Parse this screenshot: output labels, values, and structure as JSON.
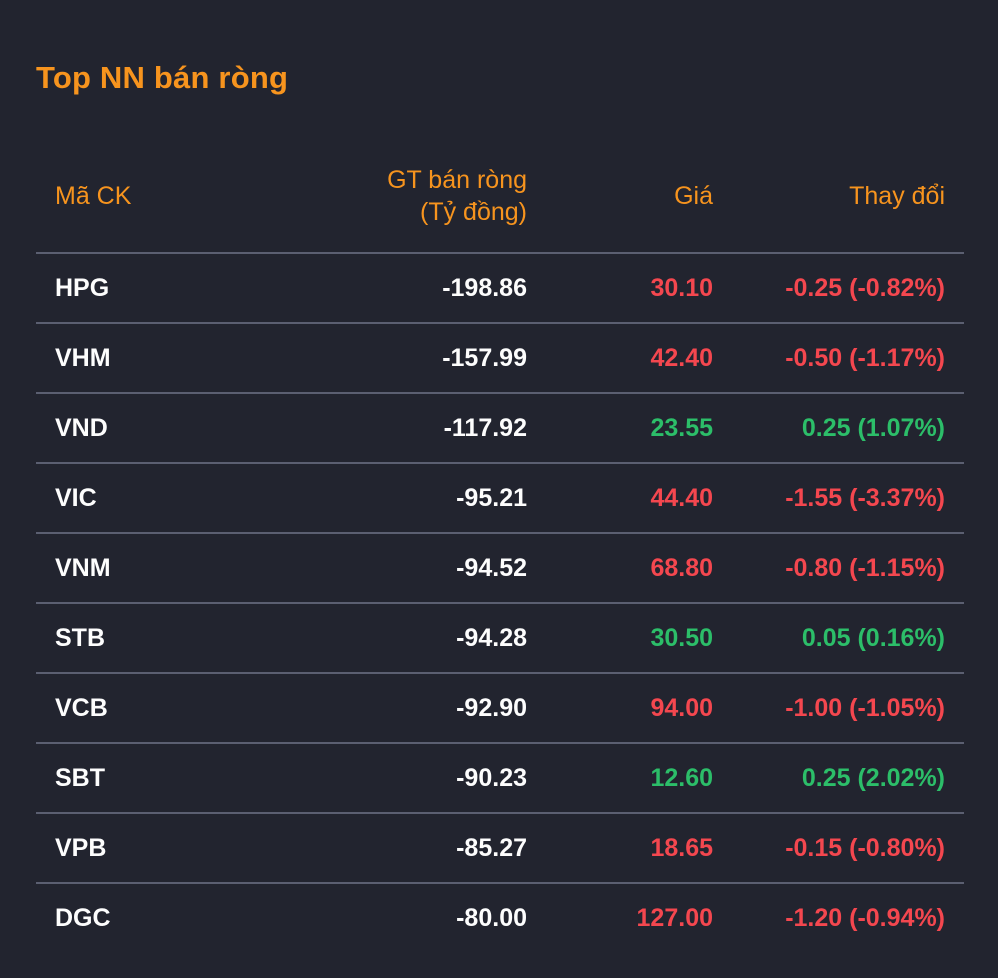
{
  "title": "Top NN bán ròng",
  "table": {
    "headers": {
      "symbol": "Mã CK",
      "net_sell_line1": "GT bán ròng",
      "net_sell_line2": "(Tỷ đồng)",
      "price": "Giá",
      "change": "Thay đổi"
    },
    "rows": [
      {
        "symbol": "HPG",
        "net_sell": "-198.86",
        "price": "30.10",
        "change": "-0.25 (-0.82%)",
        "direction": "down"
      },
      {
        "symbol": "VHM",
        "net_sell": "-157.99",
        "price": "42.40",
        "change": "-0.50 (-1.17%)",
        "direction": "down"
      },
      {
        "symbol": "VND",
        "net_sell": "-117.92",
        "price": "23.55",
        "change": "0.25 (1.07%)",
        "direction": "up"
      },
      {
        "symbol": "VIC",
        "net_sell": "-95.21",
        "price": "44.40",
        "change": "-1.55 (-3.37%)",
        "direction": "down"
      },
      {
        "symbol": "VNM",
        "net_sell": "-94.52",
        "price": "68.80",
        "change": "-0.80 (-1.15%)",
        "direction": "down"
      },
      {
        "symbol": "STB",
        "net_sell": "-94.28",
        "price": "30.50",
        "change": "0.05 (0.16%)",
        "direction": "up"
      },
      {
        "symbol": "VCB",
        "net_sell": "-92.90",
        "price": "94.00",
        "change": "-1.00 (-1.05%)",
        "direction": "down"
      },
      {
        "symbol": "SBT",
        "net_sell": "-90.23",
        "price": "12.60",
        "change": "0.25 (2.02%)",
        "direction": "up"
      },
      {
        "symbol": "VPB",
        "net_sell": "-85.27",
        "price": "18.65",
        "change": "-0.15 (-0.80%)",
        "direction": "down"
      },
      {
        "symbol": "DGC",
        "net_sell": "-80.00",
        "price": "127.00",
        "change": "-1.20 (-0.94%)",
        "direction": "down"
      }
    ]
  },
  "colors": {
    "background": "#22242f",
    "accent_orange": "#f7941e",
    "down_red": "#f4474f",
    "up_green": "#2cbe69",
    "text_white": "#fdfdfd",
    "divider": "#5b5f71"
  }
}
